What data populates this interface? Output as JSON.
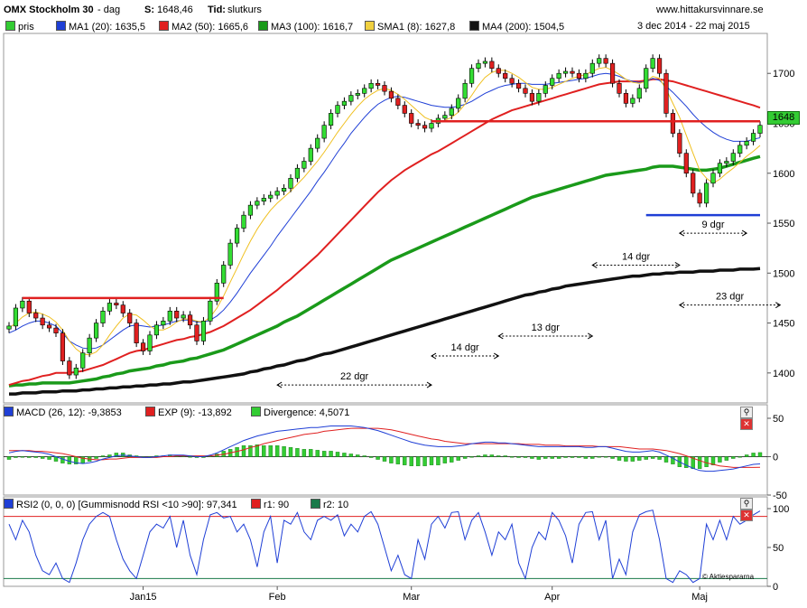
{
  "header": {
    "symbol": "OMX Stockholm 30",
    "period": " - dag",
    "s_label": "S:",
    "s_value": "1648,46",
    "tid_label": "Tid:",
    "tid_value": "slutkurs",
    "site": "www.hittakursvinnare.se",
    "date_range": "3 dec 2014 - 22 maj 2015"
  },
  "legend": [
    {
      "label": "pris",
      "color": "#33cc33"
    },
    {
      "label": "MA1 (20): 1635,5",
      "color": "#1f3fd6"
    },
    {
      "label": "MA2 (50): 1665,6",
      "color": "#e02020"
    },
    {
      "label": "MA3 (100): 1616,7",
      "color": "#1a9a1a"
    },
    {
      "label": "SMA1 (8): 1627,8",
      "color": "#f0d040"
    },
    {
      "label": "MA4 (200): 1504,5",
      "color": "#111111"
    }
  ],
  "macd_legend": [
    {
      "label": "MACD (26, 12): -9,3853",
      "color": "#1f3fd6"
    },
    {
      "label": "EXP (9): -13,892",
      "color": "#e02020"
    },
    {
      "label": "Divergence: 4,5071",
      "color": "#33cc33"
    }
  ],
  "rsi_legend": [
    {
      "label": "RSI2 (0, 0, 0) [Gummisnodd RSI <10 >90]: 97,341",
      "color": "#1f3fd6"
    },
    {
      "label": "r1: 90",
      "color": "#e02020"
    },
    {
      "label": "r2: 10",
      "color": "#1a7a4a"
    }
  ],
  "last_price_tag": "1648",
  "watermark": "© Aktiespararna",
  "chart_data": [
    {
      "type": "candlestick",
      "x_ticks": [
        "Jan15",
        "Feb",
        "Mar",
        "Apr",
        "Maj"
      ],
      "yticks": [
        1400,
        1450,
        1500,
        1550,
        1600,
        1650,
        1700
      ],
      "ylim": [
        1370,
        1740
      ],
      "closes": [
        1447,
        1465,
        1472,
        1460,
        1455,
        1448,
        1445,
        1440,
        1412,
        1398,
        1405,
        1420,
        1435,
        1450,
        1462,
        1470,
        1468,
        1460,
        1450,
        1430,
        1422,
        1438,
        1448,
        1452,
        1462,
        1455,
        1458,
        1448,
        1432,
        1452,
        1472,
        1490,
        1508,
        1530,
        1545,
        1558,
        1568,
        1572,
        1575,
        1578,
        1582,
        1585,
        1595,
        1605,
        1612,
        1625,
        1635,
        1648,
        1660,
        1668,
        1672,
        1678,
        1680,
        1685,
        1690,
        1688,
        1682,
        1675,
        1668,
        1660,
        1650,
        1648,
        1645,
        1650,
        1655,
        1658,
        1665,
        1675,
        1690,
        1705,
        1710,
        1712,
        1705,
        1700,
        1695,
        1690,
        1685,
        1680,
        1672,
        1680,
        1688,
        1695,
        1700,
        1702,
        1700,
        1695,
        1700,
        1710,
        1715,
        1710,
        1690,
        1680,
        1670,
        1675,
        1685,
        1705,
        1715,
        1700,
        1660,
        1640,
        1620,
        1600,
        1580,
        1570,
        1590,
        1600,
        1610,
        1612,
        1620,
        1628,
        1632,
        1640,
        1648
      ],
      "ma1": [
        1440,
        1443,
        1447,
        1450,
        1452,
        1452,
        1450,
        1447,
        1440,
        1432,
        1428,
        1425,
        1424,
        1425,
        1428,
        1433,
        1438,
        1443,
        1447,
        1448,
        1447,
        1446,
        1447,
        1448,
        1450,
        1452,
        1453,
        1453,
        1451,
        1451,
        1453,
        1457,
        1463,
        1471,
        1480,
        1490,
        1500,
        1509,
        1518,
        1527,
        1537,
        1546,
        1555,
        1564,
        1573,
        1582,
        1592,
        1601,
        1611,
        1621,
        1630,
        1640,
        1648,
        1656,
        1663,
        1669,
        1673,
        1676,
        1677,
        1676,
        1674,
        1672,
        1670,
        1668,
        1667,
        1666,
        1666,
        1667,
        1669,
        1672,
        1676,
        1680,
        1683,
        1686,
        1688,
        1689,
        1690,
        1690,
        1689,
        1689,
        1689,
        1690,
        1691,
        1692,
        1693,
        1694,
        1695,
        1697,
        1699,
        1700,
        1699,
        1697,
        1694,
        1692,
        1691,
        1692,
        1695,
        1693,
        1687,
        1681,
        1674,
        1667,
        1659,
        1652,
        1646,
        1641,
        1637,
        1634,
        1632,
        1632,
        1632,
        1634,
        1635.5
      ],
      "ma2": [
        1388,
        1390,
        1392,
        1393,
        1395,
        1397,
        1398,
        1400,
        1400,
        1400,
        1401,
        1402,
        1404,
        1406,
        1408,
        1411,
        1414,
        1417,
        1420,
        1422,
        1423,
        1425,
        1427,
        1429,
        1431,
        1433,
        1434,
        1436,
        1437,
        1439,
        1441,
        1444,
        1447,
        1451,
        1455,
        1459,
        1463,
        1468,
        1473,
        1478,
        1483,
        1489,
        1494,
        1500,
        1506,
        1512,
        1518,
        1525,
        1532,
        1539,
        1546,
        1553,
        1560,
        1567,
        1574,
        1581,
        1587,
        1593,
        1598,
        1603,
        1607,
        1611,
        1615,
        1619,
        1622,
        1626,
        1630,
        1634,
        1638,
        1642,
        1646,
        1650,
        1654,
        1657,
        1660,
        1663,
        1665,
        1667,
        1669,
        1671,
        1673,
        1675,
        1677,
        1679,
        1681,
        1683,
        1685,
        1687,
        1689,
        1690,
        1691,
        1692,
        1692,
        1692,
        1692,
        1693,
        1694,
        1694,
        1693,
        1692,
        1690,
        1688,
        1686,
        1684,
        1682,
        1680,
        1678,
        1676,
        1674,
        1672,
        1670,
        1668,
        1665.6
      ],
      "ma3": [
        1387,
        1388,
        1388,
        1389,
        1389,
        1390,
        1390,
        1390,
        1390,
        1390,
        1391,
        1392,
        1393,
        1394,
        1396,
        1397,
        1399,
        1400,
        1402,
        1403,
        1404,
        1405,
        1407,
        1408,
        1410,
        1411,
        1412,
        1414,
        1415,
        1417,
        1419,
        1421,
        1423,
        1426,
        1429,
        1432,
        1435,
        1438,
        1441,
        1444,
        1447,
        1451,
        1454,
        1457,
        1461,
        1465,
        1469,
        1473,
        1477,
        1481,
        1485,
        1489,
        1493,
        1497,
        1501,
        1505,
        1509,
        1513,
        1516,
        1519,
        1522,
        1525,
        1528,
        1531,
        1534,
        1537,
        1540,
        1543,
        1546,
        1549,
        1552,
        1555,
        1558,
        1561,
        1564,
        1567,
        1570,
        1573,
        1576,
        1578,
        1580,
        1582,
        1584,
        1586,
        1588,
        1590,
        1592,
        1594,
        1596,
        1598,
        1599,
        1600,
        1601,
        1602,
        1603,
        1604,
        1606,
        1607,
        1607,
        1607,
        1606,
        1605,
        1604,
        1603,
        1603,
        1604,
        1605,
        1607,
        1609,
        1611,
        1613,
        1615,
        1616.7
      ],
      "sma1": [
        1445,
        1450,
        1456,
        1460,
        1461,
        1459,
        1456,
        1451,
        1443,
        1432,
        1424,
        1419,
        1418,
        1421,
        1428,
        1438,
        1447,
        1455,
        1459,
        1458,
        1453,
        1447,
        1443,
        1443,
        1446,
        1451,
        1454,
        1454,
        1452,
        1451,
        1456,
        1465,
        1477,
        1491,
        1505,
        1519,
        1532,
        1544,
        1554,
        1563,
        1570,
        1576,
        1582,
        1589,
        1596,
        1604,
        1612,
        1621,
        1631,
        1641,
        1650,
        1659,
        1667,
        1674,
        1679,
        1683,
        1685,
        1683,
        1679,
        1674,
        1668,
        1662,
        1656,
        1653,
        1652,
        1653,
        1656,
        1661,
        1669,
        1678,
        1688,
        1696,
        1701,
        1703,
        1703,
        1700,
        1696,
        1691,
        1686,
        1684,
        1684,
        1686,
        1689,
        1692,
        1695,
        1697,
        1699,
        1702,
        1705,
        1706,
        1703,
        1699,
        1694,
        1691,
        1690,
        1692,
        1697,
        1695,
        1684,
        1670,
        1656,
        1638,
        1620,
        1603,
        1595,
        1590,
        1594,
        1600,
        1605,
        1611,
        1617,
        1622,
        1627.8
      ],
      "ma4": [
        1379,
        1379,
        1380,
        1380,
        1380,
        1381,
        1381,
        1381,
        1382,
        1382,
        1382,
        1383,
        1383,
        1384,
        1384,
        1385,
        1385,
        1386,
        1386,
        1387,
        1387,
        1388,
        1388,
        1389,
        1389,
        1390,
        1391,
        1391,
        1392,
        1393,
        1394,
        1395,
        1396,
        1397,
        1398,
        1399,
        1401,
        1402,
        1404,
        1405,
        1407,
        1408,
        1410,
        1412,
        1413,
        1415,
        1417,
        1419,
        1420,
        1422,
        1424,
        1426,
        1428,
        1430,
        1432,
        1434,
        1436,
        1438,
        1440,
        1442,
        1444,
        1446,
        1448,
        1450,
        1452,
        1454,
        1456,
        1458,
        1460,
        1462,
        1464,
        1466,
        1468,
        1470,
        1472,
        1474,
        1476,
        1478,
        1479,
        1481,
        1482,
        1484,
        1485,
        1487,
        1488,
        1489,
        1490,
        1491,
        1492,
        1493,
        1494,
        1495,
        1496,
        1497,
        1497,
        1498,
        1499,
        1499,
        1500,
        1500,
        1501,
        1501,
        1501,
        1502,
        1502,
        1502,
        1503,
        1503,
        1503,
        1504,
        1504,
        1504,
        1504.5
      ],
      "levels": [
        {
          "value": 1475,
          "color": "#e02020",
          "from": 2,
          "to": 32
        },
        {
          "value": 1652,
          "color": "#e02020",
          "from": 63,
          "to": 112
        },
        {
          "value": 1558,
          "color": "#1f3fd6",
          "from": 95,
          "to": 112
        }
      ],
      "annotations": [
        {
          "label": "22 dgr",
          "from": 40,
          "to": 63,
          "y": 1388
        },
        {
          "label": "14 dgr",
          "from": 63,
          "to": 73,
          "y": 1417
        },
        {
          "label": "13 dgr",
          "from": 73,
          "to": 87,
          "y": 1437
        },
        {
          "label": "14 dgr",
          "from": 87,
          "to": 100,
          "y": 1508
        },
        {
          "label": "9 dgr",
          "from": 100,
          "to": 110,
          "y": 1540
        },
        {
          "label": "23 dgr",
          "from": 100,
          "to": 115,
          "y": 1468
        }
      ]
    },
    {
      "type": "line",
      "name": "MACD",
      "ylim": [
        -50,
        50
      ],
      "yticks": [
        -50,
        0,
        50
      ],
      "macd": [
        5,
        7,
        8,
        7,
        6,
        5,
        3,
        0,
        -3,
        -6,
        -8,
        -9,
        -8,
        -6,
        -3,
        -1,
        1,
        2,
        1,
        0,
        -1,
        -1,
        0,
        1,
        2,
        2,
        2,
        1,
        0,
        0,
        2,
        5,
        9,
        13,
        17,
        21,
        24,
        27,
        29,
        31,
        33,
        34,
        35,
        36,
        37,
        38,
        38,
        39,
        40,
        40,
        40,
        40,
        39,
        38,
        36,
        34,
        31,
        28,
        25,
        22,
        19,
        17,
        15,
        14,
        13,
        13,
        13,
        14,
        15,
        17,
        18,
        19,
        19,
        18,
        18,
        17,
        16,
        15,
        14,
        13,
        13,
        13,
        13,
        13,
        13,
        13,
        12,
        12,
        13,
        13,
        11,
        9,
        7,
        6,
        6,
        7,
        8,
        6,
        2,
        -2,
        -7,
        -11,
        -15,
        -18,
        -19,
        -19,
        -18,
        -17,
        -16,
        -14,
        -12,
        -10,
        -9.4
      ],
      "exp": [
        8,
        8,
        8,
        8,
        7,
        7,
        6,
        5,
        4,
        2,
        0,
        -2,
        -3,
        -4,
        -4,
        -3,
        -3,
        -2,
        -1,
        -1,
        -1,
        -1,
        -1,
        0,
        0,
        1,
        1,
        1,
        1,
        1,
        1,
        2,
        3,
        5,
        7,
        9,
        12,
        14,
        17,
        19,
        21,
        23,
        25,
        27,
        29,
        30,
        31,
        33,
        34,
        35,
        36,
        37,
        37,
        37,
        37,
        37,
        36,
        35,
        33,
        31,
        29,
        27,
        25,
        23,
        22,
        20,
        19,
        18,
        17,
        17,
        17,
        17,
        17,
        17,
        17,
        17,
        17,
        16,
        16,
        16,
        15,
        15,
        15,
        14,
        14,
        14,
        14,
        14,
        13,
        13,
        13,
        13,
        12,
        11,
        10,
        10,
        10,
        9,
        8,
        6,
        4,
        1,
        -2,
        -5,
        -8,
        -10,
        -12,
        -13,
        -14,
        -14,
        -14,
        -14,
        -13.9
      ]
    },
    {
      "type": "line",
      "name": "RSI2",
      "ylim": [
        0,
        100
      ],
      "yticks": [
        0,
        50,
        100
      ],
      "r1": 90,
      "r2": 10,
      "values": [
        80,
        60,
        85,
        70,
        40,
        20,
        15,
        30,
        10,
        5,
        30,
        60,
        80,
        90,
        95,
        90,
        60,
        35,
        20,
        10,
        40,
        70,
        80,
        75,
        90,
        50,
        85,
        40,
        15,
        60,
        92,
        95,
        88,
        90,
        70,
        80,
        60,
        25,
        70,
        90,
        30,
        85,
        80,
        95,
        70,
        60,
        85,
        90,
        85,
        92,
        65,
        80,
        70,
        90,
        96,
        80,
        50,
        20,
        40,
        15,
        10,
        60,
        35,
        80,
        90,
        75,
        95,
        96,
        60,
        85,
        95,
        70,
        40,
        70,
        60,
        80,
        30,
        10,
        50,
        70,
        60,
        95,
        85,
        65,
        30,
        80,
        95,
        96,
        60,
        85,
        10,
        35,
        15,
        70,
        92,
        96,
        98,
        60,
        10,
        5,
        20,
        15,
        5,
        10,
        80,
        60,
        85,
        60,
        90,
        80,
        85,
        92,
        97
      ]
    }
  ]
}
